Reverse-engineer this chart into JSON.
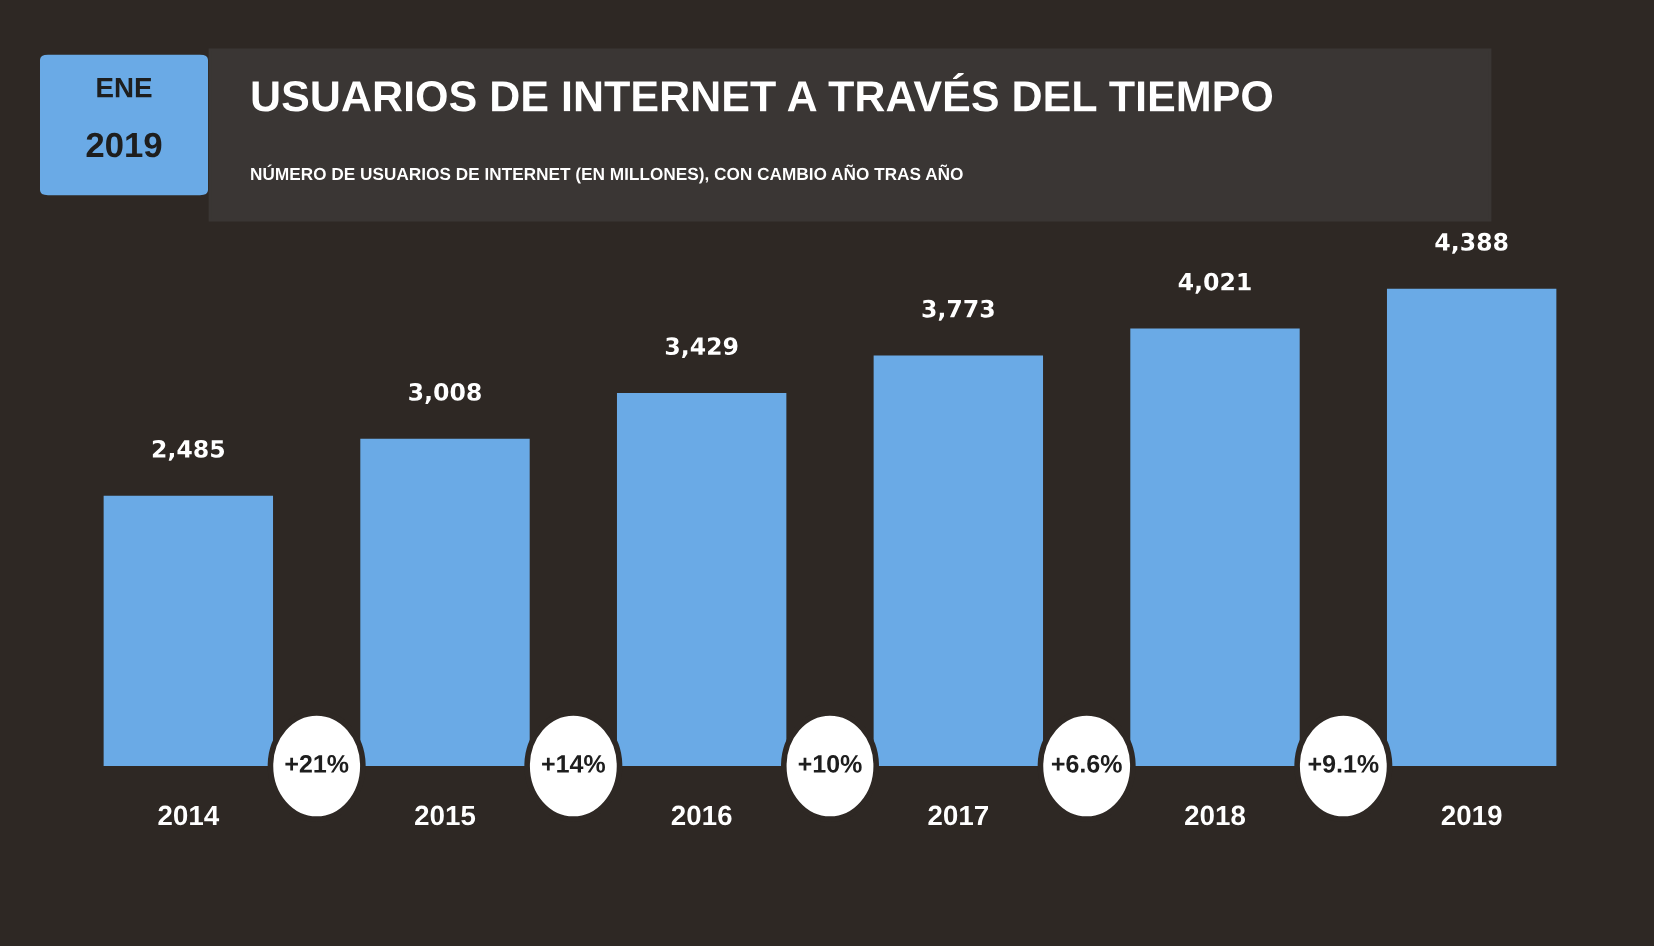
{
  "chart_data": {
    "type": "bar",
    "title": "USUARIOS DE INTERNET A TRAVÉS DEL TIEMPO",
    "subtitle": "NÚMERO DE USUARIOS DE INTERNET (EN MILLONES), CON CAMBIO AÑO TRAS AÑO",
    "categories": [
      "2014",
      "2015",
      "2016",
      "2017",
      "2018",
      "2019"
    ],
    "values": [
      2485,
      3008,
      3429,
      3773,
      4021,
      4388
    ],
    "value_labels": [
      "2,485",
      "3,008",
      "3,429",
      "3,773",
      "4,021",
      "4,388"
    ],
    "color": "#6aaae6",
    "annotations": [
      "ENE",
      "2019",
      "+21%",
      "+14%",
      "+10%",
      "+6.6%",
      "+9.1%"
    ],
    "grid": false,
    "legend": false
  }
}
